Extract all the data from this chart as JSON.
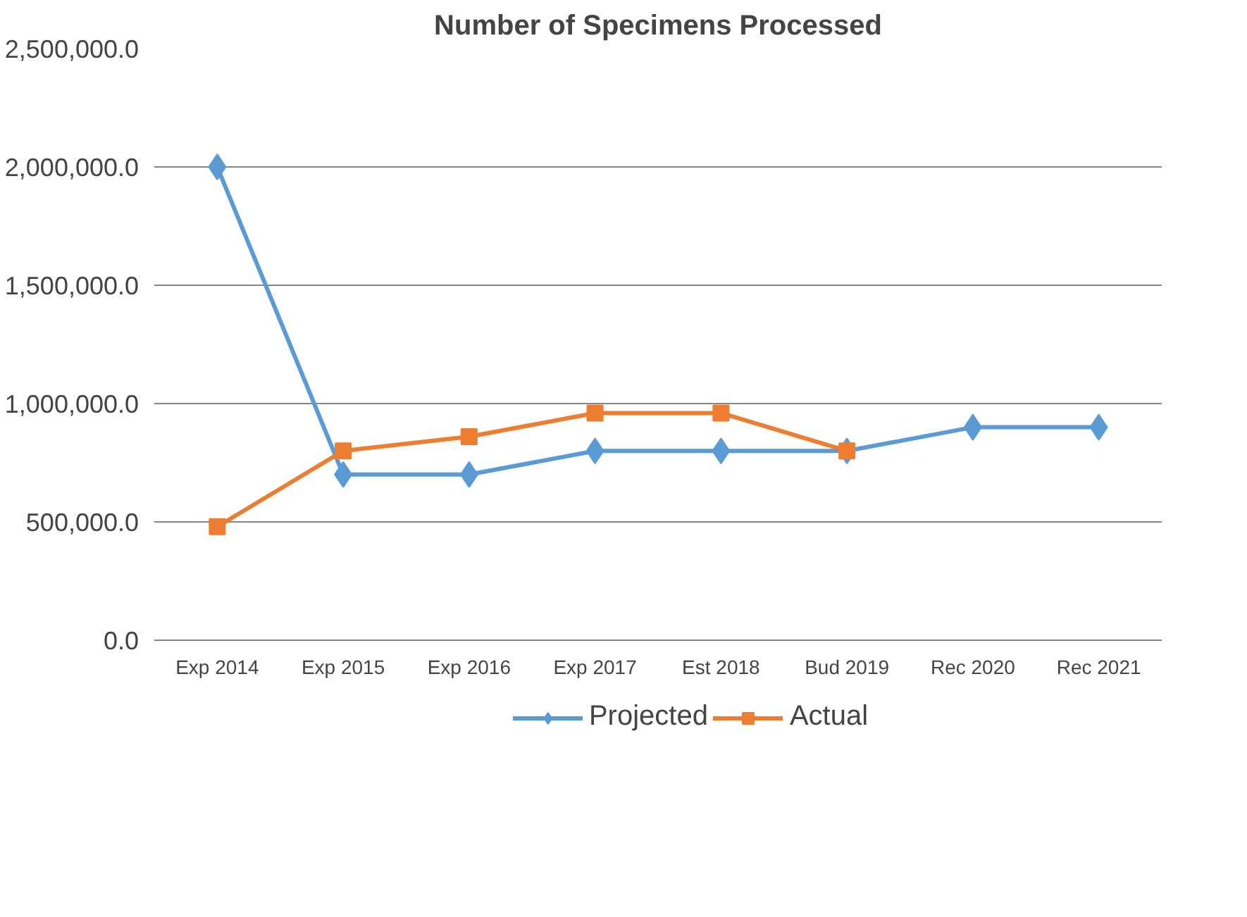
{
  "chart_data": {
    "type": "line",
    "title": "Number of Specimens Processed",
    "categories": [
      "Exp 2014",
      "Exp 2015",
      "Exp 2016",
      "Exp 2017",
      "Est 2018",
      "Bud 2019",
      "Rec 2020",
      "Rec 2021"
    ],
    "series": [
      {
        "name": "Projected",
        "color": "#5b9bd5",
        "marker": "diamond",
        "values": [
          2000000,
          700000,
          700000,
          800000,
          800000,
          800000,
          900000,
          900000
        ]
      },
      {
        "name": "Actual",
        "color": "#ed7d31",
        "marker": "square",
        "values": [
          480000,
          800000,
          860000,
          960000,
          960000,
          800000,
          null,
          null
        ]
      }
    ],
    "ylim": [
      0,
      2500000
    ],
    "yticks": [
      {
        "value": 0,
        "label": "0.0"
      },
      {
        "value": 500000,
        "label": "500,000.0"
      },
      {
        "value": 1000000,
        "label": "1,000,000.0"
      },
      {
        "value": 1500000,
        "label": "1,500,000.0"
      },
      {
        "value": 2000000,
        "label": "2,000,000.0"
      },
      {
        "value": 2500000,
        "label": "2,500,000.0"
      }
    ],
    "grid": "y",
    "legend": "bottom",
    "line_style": "solid"
  }
}
